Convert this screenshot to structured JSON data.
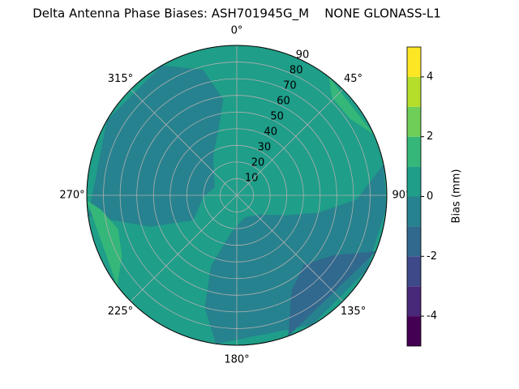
{
  "chart_data": {
    "type": "polar-contour",
    "title": "Delta Antenna Phase Biases: ASH701945G_M    NONE GLONASS-L1",
    "colorbar_label": "Bias (mm)",
    "levels": [
      -5,
      -4,
      -3,
      -2,
      -1,
      0,
      1,
      2,
      3,
      4,
      5
    ],
    "colors": [
      "#440154",
      "#482878",
      "#3e4989",
      "#31688e",
      "#26828e",
      "#1f9e89",
      "#35b779",
      "#6ece58",
      "#b5de2b",
      "#fde725"
    ],
    "cticks": [
      -4,
      -2,
      0,
      2,
      4
    ],
    "background_value": 0.5,
    "regions": [
      {
        "value": -0.5,
        "points": [
          [
            240,
            30
          ],
          [
            250,
            55
          ],
          [
            262,
            90
          ],
          [
            300,
            90
          ],
          [
            330,
            90
          ],
          [
            345,
            78
          ],
          [
            352,
            58
          ],
          [
            345,
            42
          ],
          [
            330,
            28
          ],
          [
            310,
            18
          ],
          [
            290,
            14
          ],
          [
            268,
            20
          ]
        ]
      },
      {
        "value": -0.5,
        "points": [
          [
            78,
            90
          ],
          [
            92,
            72
          ],
          [
            102,
            50
          ],
          [
            112,
            32
          ],
          [
            130,
            18
          ],
          [
            160,
            14
          ],
          [
            188,
            22
          ],
          [
            200,
            45
          ],
          [
            196,
            70
          ],
          [
            188,
            90
          ],
          [
            150,
            90
          ],
          [
            120,
            90
          ],
          [
            95,
            90
          ]
        ]
      },
      {
        "value": -1.5,
        "points": [
          [
            112,
            90
          ],
          [
            122,
            68
          ],
          [
            136,
            58
          ],
          [
            150,
            66
          ],
          [
            160,
            90
          ]
        ]
      },
      {
        "value": 1.5,
        "points": [
          [
            233,
            90
          ],
          [
            242,
            78
          ],
          [
            254,
            74
          ],
          [
            264,
            82
          ],
          [
            268,
            90
          ]
        ]
      },
      {
        "value": 1.5,
        "points": [
          [
            38,
            90
          ],
          [
            44,
            82
          ],
          [
            56,
            82
          ],
          [
            66,
            90
          ]
        ]
      }
    ],
    "xticks": [
      {
        "value": 0,
        "label": "0°"
      },
      {
        "value": 45,
        "label": "45°"
      },
      {
        "value": 90,
        "label": "90°"
      },
      {
        "value": 135,
        "label": "135°"
      },
      {
        "value": 180,
        "label": "180°"
      },
      {
        "value": 225,
        "label": "225°"
      },
      {
        "value": 270,
        "label": "270°"
      },
      {
        "value": 315,
        "label": "315°"
      }
    ],
    "ylim": [
      0,
      90
    ],
    "yticks": [
      10,
      20,
      30,
      40,
      50,
      60,
      70,
      80,
      90
    ],
    "grid": true
  }
}
